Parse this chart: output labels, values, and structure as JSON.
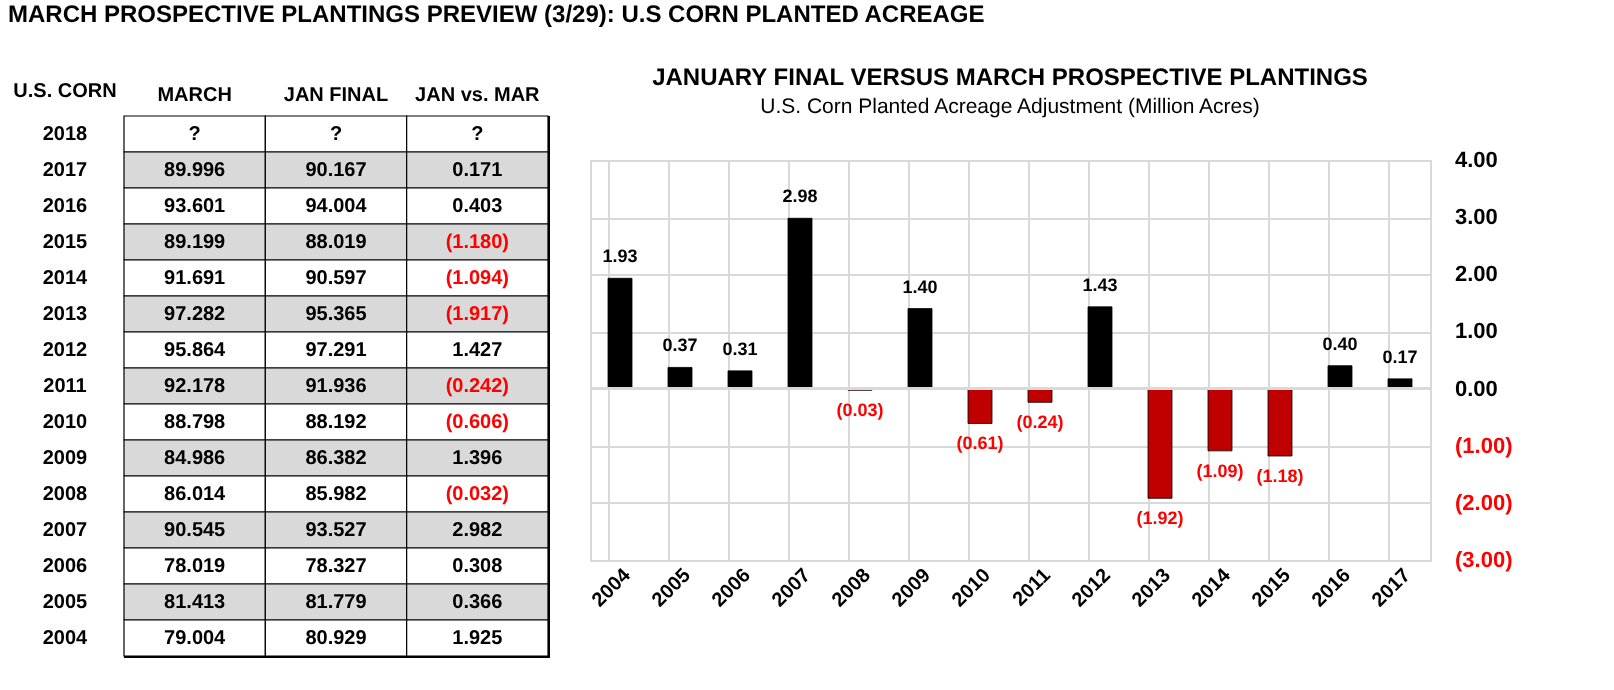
{
  "chart_data": [
    {
      "type": "heatmap",
      "title": "MARCH PROSPECTIVE PLANTINGS PREVIEW (3/29):  U.S CORN PLANTED ACREAGE",
      "ylabel": "U.S. CORN",
      "categories": [
        "MARCH",
        "JAN FINAL",
        "JAN vs. MAR"
      ],
      "y_categories": [
        "2018",
        "2017",
        "2016",
        "2015",
        "2014",
        "2013",
        "2012",
        "2011",
        "2010",
        "2009",
        "2008",
        "2007",
        "2006",
        "2005",
        "2004"
      ],
      "cells": [
        [
          null,
          null,
          null
        ],
        [
          89.996,
          90.167,
          0.171
        ],
        [
          93.601,
          94.004,
          0.403
        ],
        [
          89.199,
          88.019,
          -1.18
        ],
        [
          91.691,
          90.597,
          -1.094
        ],
        [
          97.282,
          95.365,
          -1.917
        ],
        [
          95.864,
          97.291,
          1.427
        ],
        [
          92.178,
          91.936,
          -0.242
        ],
        [
          88.798,
          88.192,
          -0.606
        ],
        [
          84.986,
          86.382,
          1.396
        ],
        [
          86.014,
          85.982,
          -0.032
        ],
        [
          90.545,
          93.527,
          2.982
        ],
        [
          78.019,
          78.327,
          0.308
        ],
        [
          81.413,
          81.779,
          0.366
        ],
        [
          79.004,
          80.929,
          1.925
        ]
      ],
      "cell_labels": [
        [
          "?",
          "?",
          "?"
        ],
        [
          "89.996",
          "90.167",
          "0.171"
        ],
        [
          "93.601",
          "94.004",
          "0.403"
        ],
        [
          "89.199",
          "88.019",
          "(1.180)"
        ],
        [
          "91.691",
          "90.597",
          "(1.094)"
        ],
        [
          "97.282",
          "95.365",
          "(1.917)"
        ],
        [
          "95.864",
          "97.291",
          "1.427"
        ],
        [
          "92.178",
          "91.936",
          "(0.242)"
        ],
        [
          "88.798",
          "88.192",
          "(0.606)"
        ],
        [
          "84.986",
          "86.382",
          "1.396"
        ],
        [
          "86.014",
          "85.982",
          "(0.032)"
        ],
        [
          "90.545",
          "93.527",
          "2.982"
        ],
        [
          "78.019",
          "78.327",
          "0.308"
        ],
        [
          "81.413",
          "81.779",
          "0.366"
        ],
        [
          "79.004",
          "80.929",
          "1.925"
        ]
      ]
    },
    {
      "type": "bar",
      "title": "JANUARY FINAL VERSUS MARCH PROSPECTIVE PLANTINGS",
      "subtitle": "U.S. Corn Planted Acreage Adjustment (Million Acres)",
      "categories": [
        "2004",
        "2005",
        "2006",
        "2007",
        "2008",
        "2009",
        "2010",
        "2011",
        "2012",
        "2013",
        "2014",
        "2015",
        "2016",
        "2017"
      ],
      "values": [
        1.93,
        0.37,
        0.31,
        2.98,
        -0.03,
        1.4,
        -0.61,
        -0.24,
        1.43,
        -1.92,
        -1.09,
        -1.18,
        0.4,
        0.17
      ],
      "colors": [
        "#000000",
        "#000000",
        "#000000",
        "#000000",
        "#c00000",
        "#000000",
        "#c00000",
        "#c00000",
        "#000000",
        "#c00000",
        "#c00000",
        "#c00000",
        "#000000",
        "#000000"
      ],
      "value_labels": [
        "1.93",
        "0.37",
        "0.31",
        "2.98",
        "(0.03)",
        "1.40",
        "(0.61)",
        "(0.24)",
        "1.43",
        "(1.92)",
        "(1.09)",
        "(1.18)",
        "0.40",
        "0.17"
      ],
      "ylim": [
        -3,
        4
      ],
      "yticks": [
        {
          "value": 4,
          "label": "4.00"
        },
        {
          "value": 3,
          "label": "3.00"
        },
        {
          "value": 2,
          "label": "2.00"
        },
        {
          "value": 1,
          "label": "1.00"
        },
        {
          "value": 0,
          "label": "0.00"
        },
        {
          "value": -1,
          "label": "(1.00)"
        },
        {
          "value": -2,
          "label": "(2.00)"
        },
        {
          "value": -3,
          "label": "(3.00)"
        }
      ],
      "grid": true
    }
  ]
}
